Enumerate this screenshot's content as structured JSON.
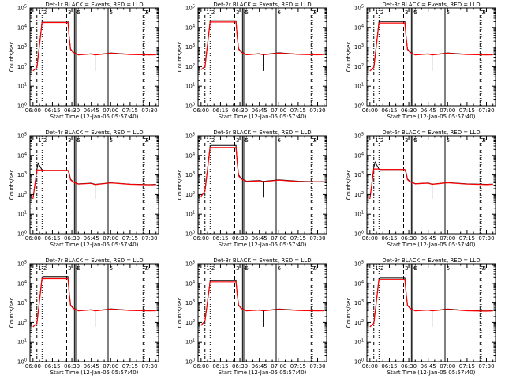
{
  "figure": {
    "xlabel": "Start Time (12-Jan-05 05:57:40)",
    "ylabel": "Counts/sec",
    "x_tick_labels": [
      "06:00",
      "06:15",
      "06:30",
      "06:45",
      "07:00",
      "07:15",
      "07:30"
    ],
    "y_tick_labels": [
      "10^0",
      "10^1",
      "10^2",
      "10^3",
      "10^4",
      "10^5"
    ],
    "colors": {
      "events": "#000000",
      "lld": "#ff0000",
      "background": "#ffffff"
    }
  },
  "chart_data": [
    {
      "type": "line",
      "title": "Det-1r BLACK = Events, RED = LLD",
      "yscale": "log",
      "xlim": [
        "05:57:40",
        "07:37:00"
      ],
      "ylim": [
        1,
        100000
      ],
      "x": [
        "06:00",
        "06:03",
        "06:07",
        "06:08",
        "06:27",
        "06:28",
        "06:29",
        "06:31",
        "06:35",
        "06:45",
        "06:48",
        "07:00",
        "07:15",
        "07:30",
        "07:35"
      ],
      "series": [
        {
          "name": "Events",
          "values": [
            60,
            90,
            20000,
            21000,
            21000,
            3000,
            800,
            550,
            400,
            450,
            400,
            500,
            420,
            400,
            410
          ]
        },
        {
          "name": "LLD",
          "values": [
            60,
            90,
            18000,
            18000,
            18000,
            2800,
            750,
            530,
            390,
            440,
            390,
            480,
            410,
            390,
            400
          ]
        }
      ],
      "dip": {
        "x": "06:48",
        "value": 60
      },
      "markers": [
        {
          "x": "06:03",
          "label": "1",
          "style": "dash-dot"
        },
        {
          "x": "06:07",
          "label": "2",
          "style": "dotted"
        },
        {
          "x": "06:26",
          "label": "3",
          "style": "dashed"
        },
        {
          "x": "06:32",
          "label": "4",
          "style": "solid"
        },
        {
          "x": "06:33",
          "label": "5",
          "style": "solid"
        },
        {
          "x": "06:58",
          "label": "6",
          "style": "solid"
        },
        {
          "x": "07:25",
          "label": "7",
          "style": "dash-dot"
        },
        {
          "x": "07:26",
          "label": "8",
          "style": "dotted"
        }
      ]
    },
    {
      "type": "line",
      "title": "Det-2r BLACK = Events, RED = LLD",
      "yscale": "log",
      "xlim": [
        "05:57:40",
        "07:37:00"
      ],
      "ylim": [
        1,
        100000
      ],
      "x": [
        "06:00",
        "06:03",
        "06:07",
        "06:08",
        "06:27",
        "06:28",
        "06:29",
        "06:31",
        "06:35",
        "06:45",
        "06:48",
        "07:00",
        "07:15",
        "07:30",
        "07:35"
      ],
      "series": [
        {
          "name": "Events",
          "values": [
            70,
            100,
            21000,
            22000,
            22000,
            3100,
            850,
            560,
            410,
            460,
            410,
            510,
            430,
            410,
            420
          ]
        },
        {
          "name": "LLD",
          "values": [
            70,
            100,
            19000,
            19000,
            19000,
            2900,
            780,
            540,
            400,
            450,
            400,
            490,
            420,
            400,
            410
          ]
        }
      ],
      "dip": {
        "x": "06:48",
        "value": 60
      },
      "markers": [
        {
          "x": "06:03",
          "label": "1",
          "style": "dash-dot"
        },
        {
          "x": "06:07",
          "label": "2",
          "style": "dotted"
        },
        {
          "x": "06:26",
          "label": "3",
          "style": "dashed"
        },
        {
          "x": "06:32",
          "label": "4",
          "style": "solid"
        },
        {
          "x": "06:33",
          "label": "5",
          "style": "solid"
        },
        {
          "x": "06:58",
          "label": "6",
          "style": "solid"
        },
        {
          "x": "07:25",
          "label": "7",
          "style": "dash-dot"
        },
        {
          "x": "07:26",
          "label": "8",
          "style": "dotted"
        }
      ]
    },
    {
      "type": "line",
      "title": "Det-3r BLACK = Events, RED = LLD",
      "yscale": "log",
      "xlim": [
        "05:57:40",
        "07:37:00"
      ],
      "ylim": [
        1,
        100000
      ],
      "x": [
        "06:00",
        "06:03",
        "06:07",
        "06:08",
        "06:27",
        "06:28",
        "06:29",
        "06:31",
        "06:35",
        "06:45",
        "06:48",
        "07:00",
        "07:15",
        "07:30",
        "07:35"
      ],
      "series": [
        {
          "name": "Events",
          "values": [
            60,
            90,
            20000,
            20000,
            20000,
            3000,
            800,
            550,
            400,
            450,
            400,
            500,
            420,
            400,
            410
          ]
        },
        {
          "name": "LLD",
          "values": [
            60,
            90,
            17000,
            17000,
            17000,
            2800,
            750,
            530,
            390,
            440,
            390,
            480,
            410,
            390,
            400
          ]
        }
      ],
      "dip": {
        "x": "06:48",
        "value": 60
      },
      "markers": [
        {
          "x": "06:03",
          "label": "1",
          "style": "dash-dot"
        },
        {
          "x": "06:07",
          "label": "2",
          "style": "dotted"
        },
        {
          "x": "06:26",
          "label": "3",
          "style": "dashed"
        },
        {
          "x": "06:32",
          "label": "4",
          "style": "solid"
        },
        {
          "x": "06:33",
          "label": "5",
          "style": "solid"
        },
        {
          "x": "06:58",
          "label": "6",
          "style": "solid"
        },
        {
          "x": "07:25",
          "label": "7",
          "style": "dash-dot"
        },
        {
          "x": "07:26",
          "label": "8",
          "style": "dotted"
        }
      ]
    },
    {
      "type": "line",
      "title": "Det-4r BLACK = Events, RED = LLD",
      "yscale": "log",
      "xlim": [
        "05:57:40",
        "07:37:00"
      ],
      "ylim": [
        1,
        100000
      ],
      "x": [
        "06:00",
        "06:03",
        "06:04",
        "06:07",
        "06:08",
        "06:27",
        "06:28",
        "06:29",
        "06:31",
        "06:35",
        "06:45",
        "06:48",
        "07:00",
        "07:15",
        "07:30",
        "07:35"
      ],
      "series": [
        {
          "name": "Events",
          "values": [
            60,
            2000,
            4000,
            1800,
            1700,
            1700,
            1200,
            600,
            450,
            350,
            380,
            330,
            400,
            340,
            320,
            330
          ]
        },
        {
          "name": "LLD",
          "values": [
            60,
            1800,
            1800,
            1800,
            1700,
            1700,
            1100,
            560,
            430,
            340,
            370,
            320,
            390,
            330,
            310,
            320
          ]
        }
      ],
      "dip": {
        "x": "06:48",
        "value": 60
      },
      "markers": [
        {
          "x": "06:03",
          "label": "1",
          "style": "dash-dot"
        },
        {
          "x": "06:07",
          "label": "2",
          "style": "dotted"
        },
        {
          "x": "06:26",
          "label": "3",
          "style": "dashed"
        },
        {
          "x": "06:32",
          "label": "4",
          "style": "solid"
        },
        {
          "x": "06:33",
          "label": "5",
          "style": "solid"
        },
        {
          "x": "06:58",
          "label": "6",
          "style": "solid"
        },
        {
          "x": "07:25",
          "label": "7",
          "style": "dash-dot"
        },
        {
          "x": "07:26",
          "label": "8",
          "style": "dotted"
        }
      ]
    },
    {
      "type": "line",
      "title": "Det-5r BLACK = Events, RED = LLD",
      "yscale": "log",
      "xlim": [
        "05:57:40",
        "07:37:00"
      ],
      "ylim": [
        1,
        100000
      ],
      "x": [
        "06:00",
        "06:03",
        "06:07",
        "06:08",
        "06:27",
        "06:28",
        "06:29",
        "06:31",
        "06:35",
        "06:45",
        "06:48",
        "07:00",
        "07:15",
        "07:30",
        "07:35"
      ],
      "series": [
        {
          "name": "Events",
          "values": [
            80,
            150,
            30000,
            32000,
            32000,
            4000,
            1000,
            650,
            480,
            520,
            470,
            560,
            480,
            450,
            460
          ]
        },
        {
          "name": "LLD",
          "values": [
            80,
            150,
            25000,
            25000,
            25000,
            3500,
            900,
            620,
            460,
            500,
            450,
            540,
            460,
            440,
            450
          ]
        }
      ],
      "dip": {
        "x": "06:48",
        "value": 70
      },
      "markers": [
        {
          "x": "06:03",
          "label": "1",
          "style": "dash-dot"
        },
        {
          "x": "06:07",
          "label": "2",
          "style": "dotted"
        },
        {
          "x": "06:26",
          "label": "3",
          "style": "dashed"
        },
        {
          "x": "06:32",
          "label": "4",
          "style": "solid"
        },
        {
          "x": "06:33",
          "label": "5",
          "style": "solid"
        },
        {
          "x": "06:58",
          "label": "6",
          "style": "solid"
        },
        {
          "x": "07:25",
          "label": "7",
          "style": "dash-dot"
        },
        {
          "x": "07:26",
          "label": "8",
          "style": "dotted"
        }
      ]
    },
    {
      "type": "line",
      "title": "Det-6r BLACK = Events, RED = LLD",
      "yscale": "log",
      "xlim": [
        "05:57:40",
        "07:37:00"
      ],
      "ylim": [
        1,
        100000
      ],
      "x": [
        "06:00",
        "06:03",
        "06:04",
        "06:07",
        "06:08",
        "06:27",
        "06:28",
        "06:29",
        "06:31",
        "06:35",
        "06:45",
        "06:48",
        "07:00",
        "07:15",
        "07:30",
        "07:35"
      ],
      "series": [
        {
          "name": "Events",
          "values": [
            60,
            2500,
            4500,
            2000,
            1900,
            1900,
            1300,
            620,
            460,
            360,
            390,
            340,
            410,
            350,
            330,
            340
          ]
        },
        {
          "name": "LLD",
          "values": [
            60,
            2000,
            2000,
            2000,
            1900,
            1900,
            1200,
            580,
            440,
            350,
            380,
            330,
            400,
            340,
            320,
            330
          ]
        }
      ],
      "dip": {
        "x": "06:48",
        "value": 60
      },
      "markers": [
        {
          "x": "06:03",
          "label": "1",
          "style": "dash-dot"
        },
        {
          "x": "06:07",
          "label": "2",
          "style": "dotted"
        },
        {
          "x": "06:26",
          "label": "3",
          "style": "dashed"
        },
        {
          "x": "06:32",
          "label": "4",
          "style": "solid"
        },
        {
          "x": "06:33",
          "label": "5",
          "style": "solid"
        },
        {
          "x": "06:58",
          "label": "6",
          "style": "solid"
        },
        {
          "x": "07:25",
          "label": "7",
          "style": "dash-dot"
        },
        {
          "x": "07:26",
          "label": "8",
          "style": "dotted"
        }
      ]
    },
    {
      "type": "line",
      "title": "Det-7r BLACK = Events, RED = LLD",
      "yscale": "log",
      "xlim": [
        "05:57:40",
        "07:37:00"
      ],
      "ylim": [
        1,
        100000
      ],
      "x": [
        "06:00",
        "06:03",
        "06:07",
        "06:08",
        "06:27",
        "06:28",
        "06:29",
        "06:31",
        "06:35",
        "06:45",
        "06:48",
        "07:00",
        "07:15",
        "07:30",
        "07:35"
      ],
      "series": [
        {
          "name": "Events",
          "values": [
            60,
            90,
            20000,
            21000,
            21000,
            3000,
            800,
            550,
            400,
            450,
            400,
            500,
            420,
            400,
            410
          ]
        },
        {
          "name": "LLD",
          "values": [
            60,
            90,
            18000,
            18000,
            18000,
            2800,
            750,
            530,
            390,
            440,
            390,
            480,
            410,
            390,
            400
          ]
        }
      ],
      "dip": {
        "x": "06:48",
        "value": 60
      },
      "markers": [
        {
          "x": "06:03",
          "label": "1",
          "style": "dash-dot"
        },
        {
          "x": "06:07",
          "label": "2",
          "style": "dotted"
        },
        {
          "x": "06:26",
          "label": "3",
          "style": "dashed"
        },
        {
          "x": "06:32",
          "label": "4",
          "style": "solid"
        },
        {
          "x": "06:33",
          "label": "5",
          "style": "solid"
        },
        {
          "x": "06:58",
          "label": "6",
          "style": "solid"
        },
        {
          "x": "07:25",
          "label": "7",
          "style": "dash-dot"
        },
        {
          "x": "07:26",
          "label": "8",
          "style": "dotted"
        }
      ]
    },
    {
      "type": "line",
      "title": "Det-8r BLACK = Events, RED = LLD",
      "yscale": "log",
      "xlim": [
        "05:57:40",
        "07:37:00"
      ],
      "ylim": [
        1,
        100000
      ],
      "x": [
        "06:00",
        "06:03",
        "06:07",
        "06:08",
        "06:27",
        "06:28",
        "06:29",
        "06:31",
        "06:35",
        "06:45",
        "06:48",
        "07:00",
        "07:15",
        "07:30",
        "07:35"
      ],
      "series": [
        {
          "name": "Events",
          "values": [
            70,
            120,
            13000,
            14000,
            14000,
            2500,
            800,
            540,
            400,
            440,
            400,
            490,
            420,
            400,
            410
          ]
        },
        {
          "name": "LLD",
          "values": [
            70,
            120,
            12000,
            12000,
            12000,
            2300,
            750,
            520,
            390,
            430,
            390,
            470,
            410,
            390,
            400
          ]
        }
      ],
      "dip": {
        "x": "06:48",
        "value": 60
      },
      "markers": [
        {
          "x": "06:03",
          "label": "1",
          "style": "dash-dot"
        },
        {
          "x": "06:07",
          "label": "2",
          "style": "dotted"
        },
        {
          "x": "06:26",
          "label": "3",
          "style": "dashed"
        },
        {
          "x": "06:32",
          "label": "4",
          "style": "solid"
        },
        {
          "x": "06:33",
          "label": "5",
          "style": "solid"
        },
        {
          "x": "06:58",
          "label": "6",
          "style": "solid"
        },
        {
          "x": "07:25",
          "label": "7",
          "style": "dash-dot"
        },
        {
          "x": "07:26",
          "label": "8",
          "style": "dotted"
        }
      ]
    },
    {
      "type": "line",
      "title": "Det-9r BLACK = Events, RED = LLD",
      "yscale": "log",
      "xlim": [
        "05:57:40",
        "07:37:00"
      ],
      "ylim": [
        1,
        100000
      ],
      "x": [
        "06:00",
        "06:03",
        "06:07",
        "06:08",
        "06:27",
        "06:28",
        "06:29",
        "06:31",
        "06:35",
        "06:45",
        "06:48",
        "07:00",
        "07:15",
        "07:30",
        "07:35"
      ],
      "series": [
        {
          "name": "Events",
          "values": [
            60,
            90,
            18000,
            19000,
            19000,
            2900,
            780,
            540,
            400,
            440,
            400,
            490,
            410,
            390,
            400
          ]
        },
        {
          "name": "LLD",
          "values": [
            60,
            90,
            16000,
            16000,
            16000,
            2700,
            740,
            520,
            390,
            430,
            390,
            470,
            400,
            380,
            390
          ]
        }
      ],
      "dip": {
        "x": "06:48",
        "value": 60
      },
      "markers": [
        {
          "x": "06:03",
          "label": "1",
          "style": "dash-dot"
        },
        {
          "x": "06:07",
          "label": "2",
          "style": "dotted"
        },
        {
          "x": "06:26",
          "label": "3",
          "style": "dashed"
        },
        {
          "x": "06:32",
          "label": "4",
          "style": "solid"
        },
        {
          "x": "06:33",
          "label": "5",
          "style": "solid"
        },
        {
          "x": "06:58",
          "label": "6",
          "style": "solid"
        },
        {
          "x": "07:25",
          "label": "7",
          "style": "dash-dot"
        },
        {
          "x": "07:26",
          "label": "8",
          "style": "dotted"
        }
      ]
    }
  ]
}
